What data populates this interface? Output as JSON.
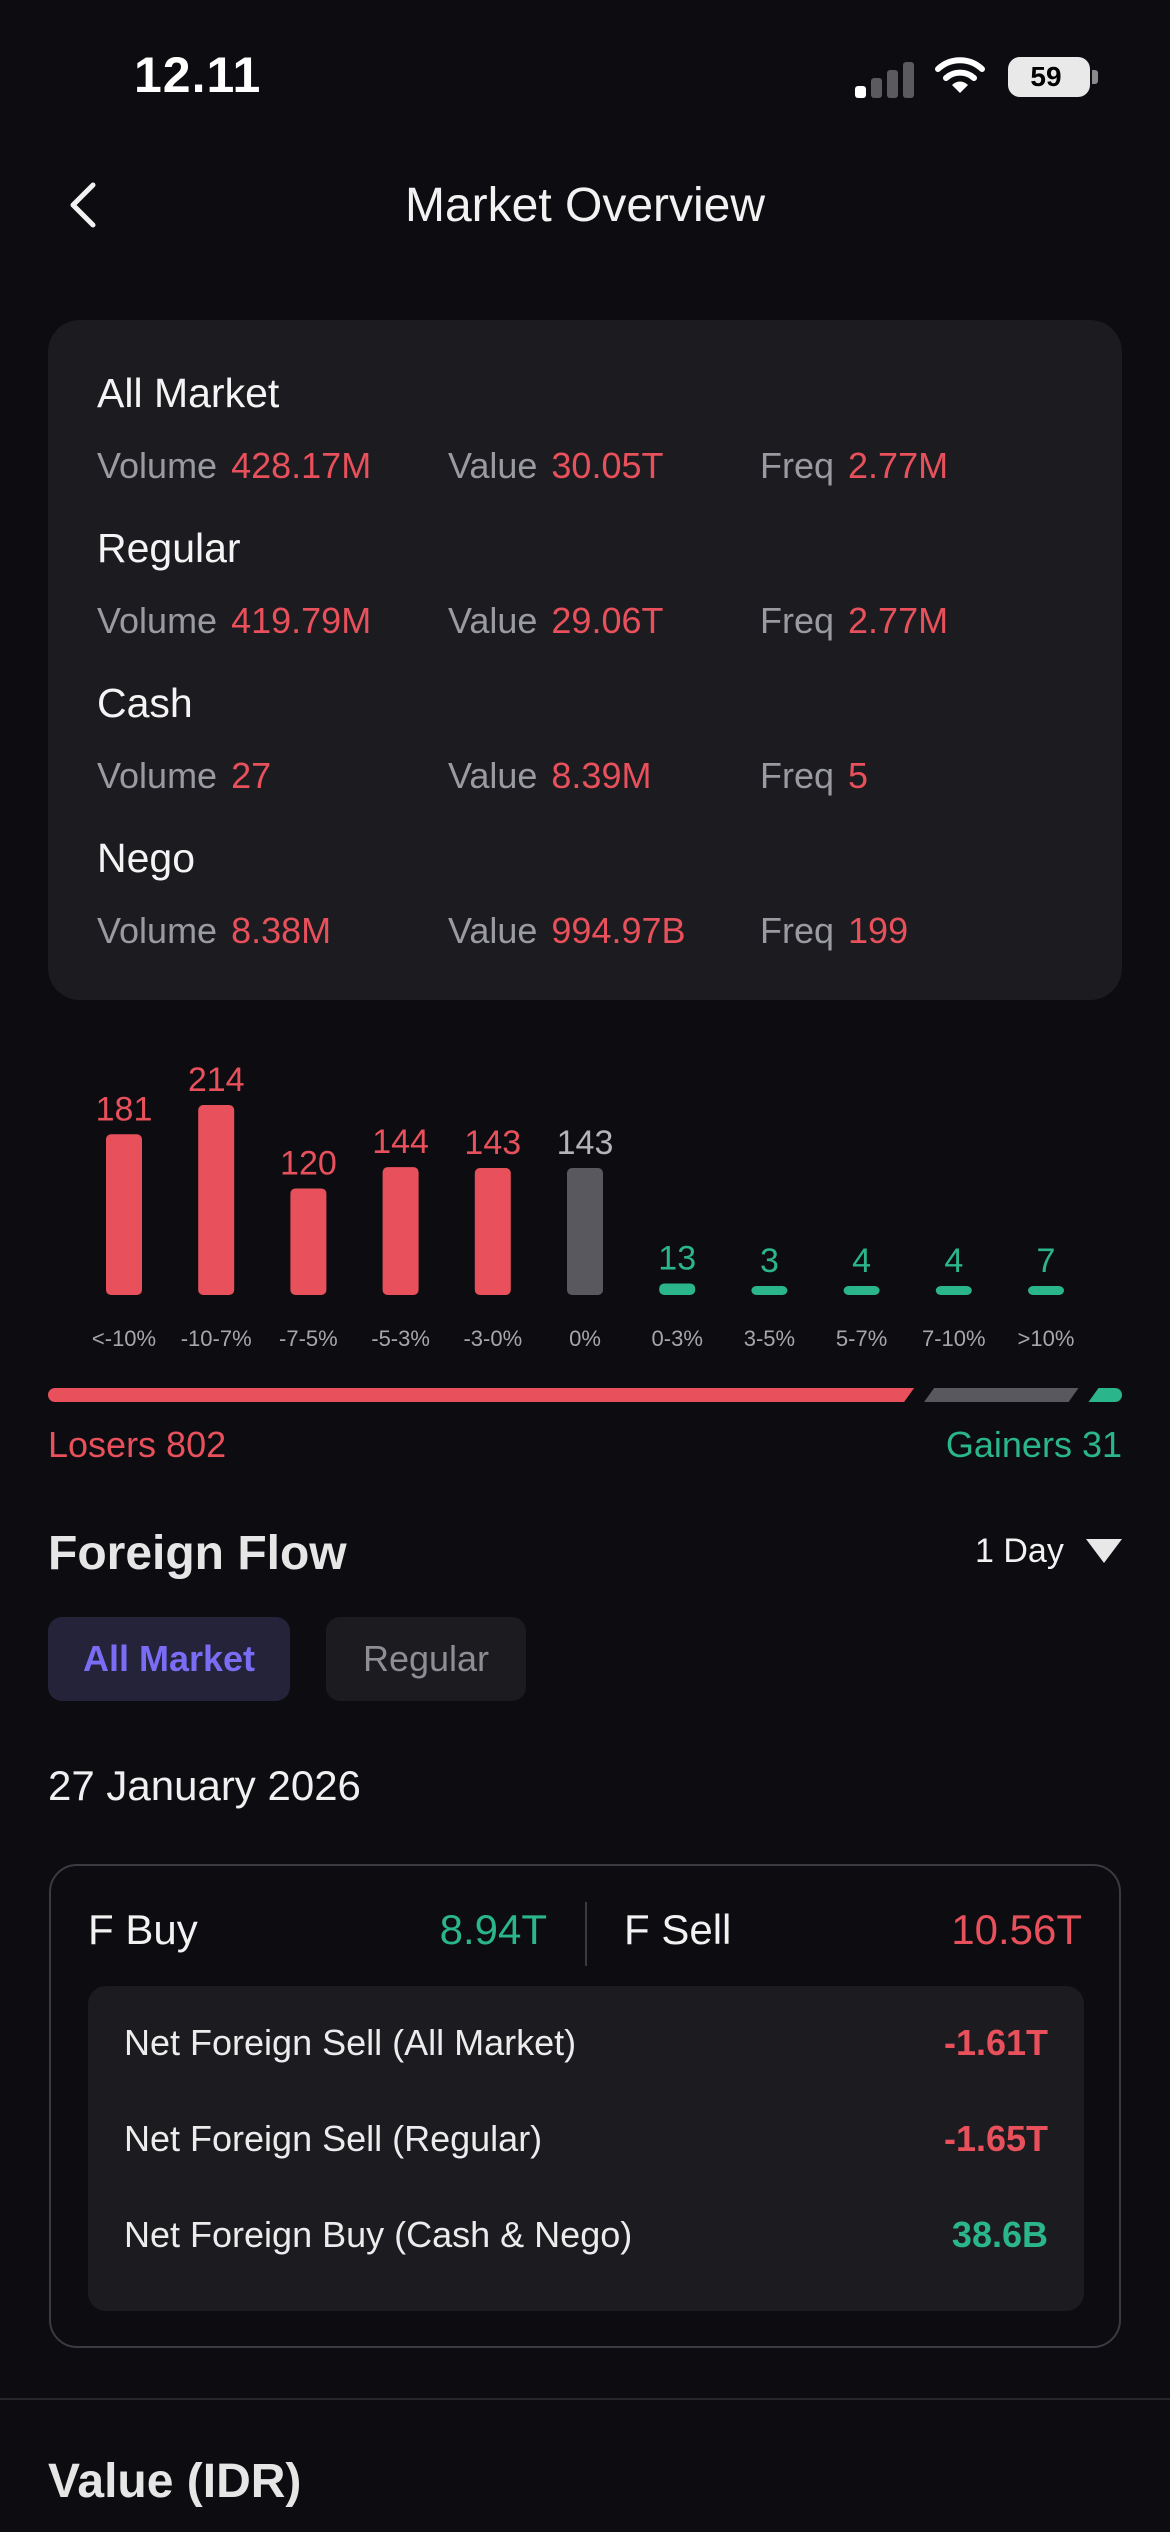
{
  "status_bar": {
    "time": "12.11",
    "battery": "59",
    "icons": [
      "cellular-signal-icon",
      "wifi-icon",
      "battery-icon"
    ]
  },
  "header": {
    "title": "Market Overview",
    "back_icon": "chevron-left-icon"
  },
  "overview": {
    "markets": [
      {
        "name": "All Market",
        "volume_label": "Volume",
        "volume": "428.17M",
        "value_label": "Value",
        "value": "30.05T",
        "freq_label": "Freq",
        "freq": "2.77M"
      },
      {
        "name": "Regular",
        "volume_label": "Volume",
        "volume": "419.79M",
        "value_label": "Value",
        "value": "29.06T",
        "freq_label": "Freq",
        "freq": "2.77M"
      },
      {
        "name": "Cash",
        "volume_label": "Volume",
        "volume": "27",
        "value_label": "Value",
        "value": "8.39M",
        "freq_label": "Freq",
        "freq": "5"
      },
      {
        "name": "Nego",
        "volume_label": "Volume",
        "volume": "8.38M",
        "value_label": "Value",
        "value": "994.97B",
        "freq_label": "Freq",
        "freq": "199"
      }
    ]
  },
  "chart_data": {
    "type": "bar",
    "categories": [
      "<-10%",
      "-10-7%",
      "-7-5%",
      "-5-3%",
      "-3-0%",
      "0%",
      "0-3%",
      "3-5%",
      "5-7%",
      "7-10%",
      ">10%"
    ],
    "values": [
      181,
      214,
      120,
      144,
      143,
      143,
      13,
      3,
      4,
      4,
      7
    ],
    "colors": [
      "#e8505b",
      "#e8505b",
      "#e8505b",
      "#e8505b",
      "#e8505b",
      "#58585e",
      "#2bb58a",
      "#2bb58a",
      "#2bb58a",
      "#2bb58a",
      "#2bb58a"
    ],
    "ylim": [
      0,
      214
    ],
    "grid": false
  },
  "breadth": {
    "losers_label": "Losers 802",
    "gainers_label": "Gainers 31",
    "losers": 802,
    "unchanged": 143,
    "gainers": 31,
    "loser_color": "#e8505b",
    "neutral_color": "#58585e",
    "gainer_color": "#2bb58a"
  },
  "foreign_flow": {
    "title": "Foreign Flow",
    "period": "1 Day",
    "tabs": [
      {
        "label": "All Market",
        "active": true
      },
      {
        "label": "Regular",
        "active": false
      }
    ],
    "date": "27 January 2026",
    "buy_label": "F Buy",
    "buy_value": "8.94T",
    "sell_label": "F Sell",
    "sell_value": "10.56T",
    "net_rows": [
      {
        "label": "Net Foreign Sell (All Market)",
        "value": "-1.61T",
        "color": "#e8505b"
      },
      {
        "label": "Net Foreign Sell (Regular)",
        "value": "-1.65T",
        "color": "#e8505b"
      },
      {
        "label": "Net Foreign Buy (Cash & Nego)",
        "value": "38.6B",
        "color": "#2bb58a"
      }
    ]
  },
  "value_section": {
    "title": "Value (IDR)"
  },
  "colors": {
    "background": "#0d0d11",
    "card": "#1c1c20",
    "negative": "#e8505b",
    "positive": "#2bb58a",
    "accent": "#7b6cf6"
  }
}
